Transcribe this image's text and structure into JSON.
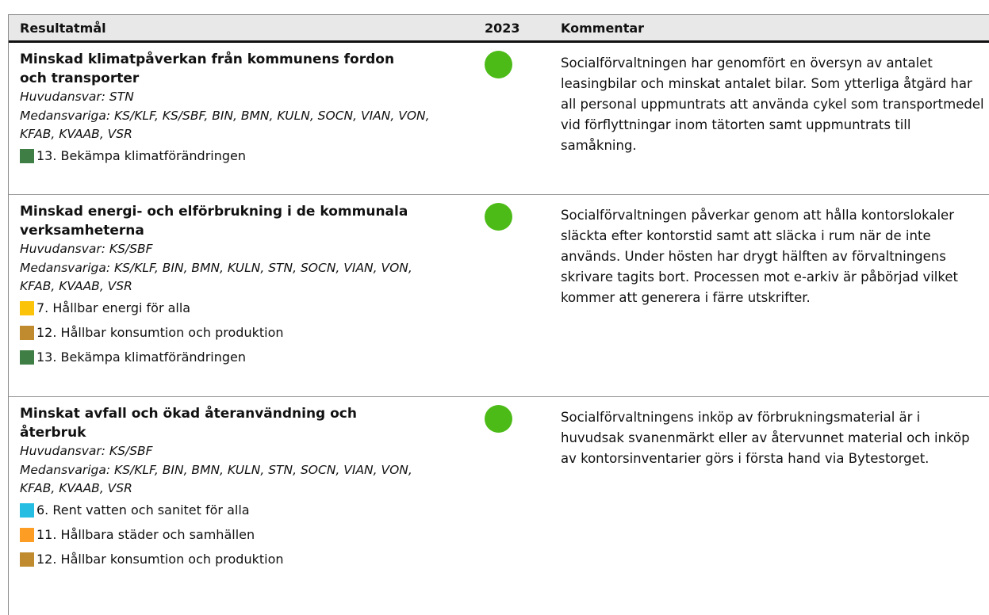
{
  "table": {
    "columns": [
      "Resultatmål",
      "2023",
      "Kommentar"
    ],
    "rows": [
      {
        "title": "Minskad klimatpåverkan från kommunens fordon och transporter",
        "responsible": "Huvudansvar: STN",
        "co_responsible": "Medansvariga: KS/KLF, KS/SBF, BIN, BMN, KULN, SOCN, VIAN, VON, KFAB, KVAAB, VSR",
        "goals": [
          {
            "label": "13. Bekämpa klimatförändringen",
            "color": "#3f7e44"
          }
        ],
        "status_color": "#4cbb17",
        "comment": "Socialförvaltningen har genomfört en översyn av antalet leasingbilar och minskat antalet bilar. Som ytterliga åtgärd har all personal uppmuntrats att använda cykel som transportmedel vid förflyttningar inom tätorten samt uppmuntrats till samåkning."
      },
      {
        "title": "Minskad energi- och elförbrukning i de kommunala verksamheterna",
        "responsible": "Huvudansvar: KS/SBF",
        "co_responsible": "Medansvariga: KS/KLF, BIN, BMN, KULN, STN, SOCN, VIAN, VON, KFAB, KVAAB, VSR",
        "goals": [
          {
            "label": "7. Hållbar energi för alla",
            "color": "#fcc30b"
          },
          {
            "label": "12. Hållbar konsumtion och produktion",
            "color": "#bf8b2e"
          },
          {
            "label": "13. Bekämpa klimatförändringen",
            "color": "#3f7e44"
          }
        ],
        "status_color": "#4cbb17",
        "comment": "Socialförvaltningen påverkar genom att hålla kontorslokaler släckta efter kontorstid samt att släcka i rum när de inte används. Under hösten har drygt hälften av förvaltningens skrivare tagits bort. Processen mot e-arkiv är påbörjad vilket kommer att generera i färre utskrifter."
      },
      {
        "title": "Minskat avfall och ökad återanvändning och återbruk",
        "responsible": "Huvudansvar: KS/SBF",
        "co_responsible": "Medansvariga: KS/KLF, BIN, BMN, KULN, STN, SOCN, VIAN, VON, KFAB, KVAAB, VSR",
        "goals": [
          {
            "label": "6. Rent vatten och sanitet för alla",
            "color": "#26bde2"
          },
          {
            "label": "11. Hållbara städer och samhällen",
            "color": "#fd9d24"
          },
          {
            "label": "12. Hållbar konsumtion och produktion",
            "color": "#bf8b2e"
          }
        ],
        "status_color": "#4cbb17",
        "comment": "Socialförvaltningens inköp av förbrukningsmaterial är i huvudsak svanenmärkt eller av återvunnet material och inköp av kontorsinventarier görs i första hand via Bytestorget."
      }
    ]
  }
}
